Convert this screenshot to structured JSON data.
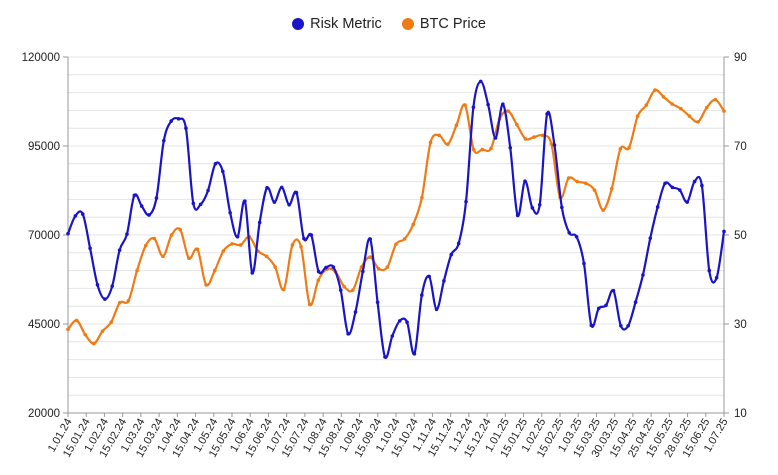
{
  "chart_data": {
    "type": "line",
    "title": "",
    "xlabel": "",
    "ylabel": "",
    "y2label": "",
    "legend_position": "top-center",
    "grid": true,
    "ylim": [
      20000,
      120000
    ],
    "y_ticks": [
      "20000",
      "45000",
      "70000",
      "95000",
      "120000"
    ],
    "y2lim": [
      10,
      90
    ],
    "y2_ticks": [
      "10",
      "30",
      "50",
      "70",
      "90"
    ],
    "x_ticks": [
      "1.01.24",
      "15.01.24",
      "1.02.24",
      "15.02.24",
      "1.03.24",
      "15.03.24",
      "1.04.24",
      "15.04.24",
      "1.05.24",
      "15.05.24",
      "1.06.24",
      "15.06.24",
      "1.07.24",
      "15.07.24",
      "1.08.24",
      "15.08.24",
      "1.09.24",
      "15.09.24",
      "1.10.24",
      "15.10.24",
      "1.11.24",
      "15.11.24",
      "1.12.24",
      "15.12.24",
      "1.01.25",
      "15.01.25",
      "1.02.25",
      "15.02.25",
      "1.03.25",
      "15.03.25",
      "30.03.25",
      "15.04.25",
      "25.04.25",
      "15.05.25",
      "28.05.25",
      "15.06.25",
      "1.07.25"
    ],
    "series": [
      {
        "name": "Risk Metric",
        "axis": "right",
        "color": "#1a14c8",
        "values": [
          50.3,
          54.3,
          54.7,
          47,
          38.8,
          35.6,
          38.5,
          46.6,
          50.2,
          58.9,
          56.5,
          54.5,
          58.3,
          71.2,
          75.6,
          76.1,
          74,
          57.1,
          56.9,
          60,
          66,
          64.3,
          55,
          49.6,
          57.6,
          41.5,
          52.8,
          60.6,
          57.4,
          60.7,
          56.8,
          59.5,
          49.2,
          50,
          41.8,
          42.7,
          42.8,
          37.6,
          27.8,
          32.7,
          41.8,
          49.1,
          34.9,
          22.6,
          27.3,
          30.7,
          30.4,
          23.3,
          36.5,
          40.7,
          33.3,
          39.7,
          45.6,
          48.1,
          57.5,
          78.7,
          84.5,
          79.3,
          71.8,
          79.4,
          69.6,
          54.4,
          62.1,
          56.1,
          56.8,
          77.2,
          70.2,
          56.2,
          50.5,
          49.6,
          43.6,
          29.7,
          33.5,
          34.2,
          37.5,
          29.6,
          29.6,
          34.9,
          41,
          49.3,
          56.3,
          61.6,
          60.7,
          60.1,
          57.4,
          62,
          61.1,
          42,
          40.4,
          50.8
        ],
        "x_index_span": [
          0,
          36
        ]
      },
      {
        "name": "BTC Price",
        "axis": "left",
        "color": "#f07b14",
        "values": [
          43500,
          46000,
          42000,
          39500,
          43000,
          45500,
          51000,
          51500,
          60000,
          67000,
          69000,
          64000,
          70000,
          71500,
          63500,
          66000,
          56000,
          60000,
          65500,
          67500,
          67200,
          69500,
          65500,
          64000,
          61000,
          54700,
          67200,
          66700,
          50500,
          57300,
          60400,
          59600,
          55500,
          54500,
          61000,
          63800,
          60500,
          61000,
          67400,
          68900,
          73000,
          80500,
          96000,
          98000,
          95500,
          100800,
          106500,
          94000,
          94000,
          94300,
          102600,
          104800,
          101000,
          97000,
          97500,
          98000,
          95600,
          80600,
          86000,
          85000,
          84500,
          82600,
          77000,
          83000,
          94200,
          94500,
          103400,
          106500,
          110700,
          108800,
          106800,
          105500,
          103400,
          101800,
          105800,
          108000,
          104800
        ],
        "x_index_span": [
          0,
          36
        ]
      }
    ]
  }
}
